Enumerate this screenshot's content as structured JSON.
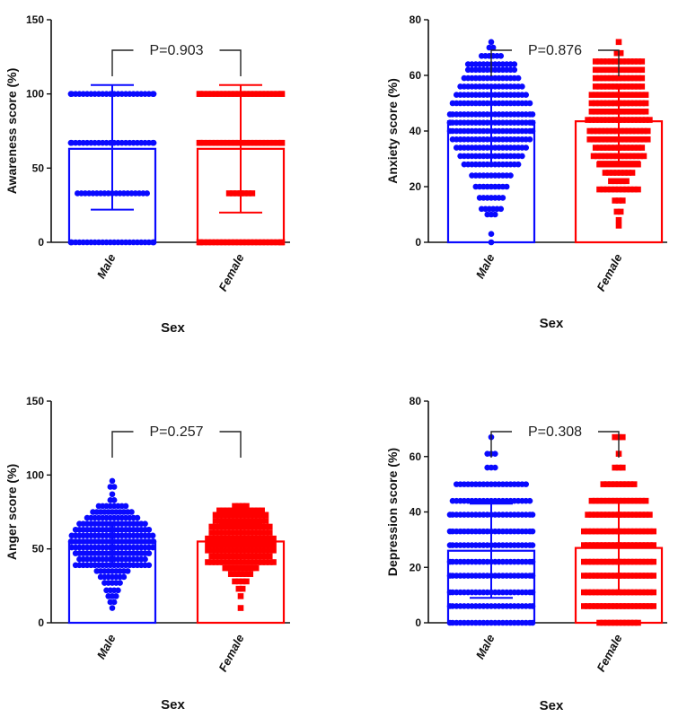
{
  "colors": {
    "male": "#0a0aff",
    "female": "#ff0000",
    "axis": "#111111"
  },
  "chart_data": [
    {
      "type": "bar",
      "ylabel": "Awareness score (%)",
      "xlabel": "Sex",
      "ylim": [
        0,
        150
      ],
      "yticks": [
        "0",
        "50",
        "100",
        "150"
      ],
      "categories": [
        "Male",
        "Female"
      ],
      "pvalue": "P=0.903",
      "series": [
        {
          "name": "Male",
          "mean": 63,
          "err_low": 22,
          "err_high": 106,
          "marker": "circle",
          "points": [
            {
              "y": 0,
              "n": 26
            },
            {
              "y": 33,
              "n": 19
            },
            {
              "y": 67,
              "n": 26
            },
            {
              "y": 100,
              "n": 26
            }
          ]
        },
        {
          "name": "Female",
          "mean": 63,
          "err_low": 20,
          "err_high": 106,
          "marker": "square",
          "points": [
            {
              "y": 0,
              "n": 24
            },
            {
              "y": 33,
              "n": 7
            },
            {
              "y": 67,
              "n": 24
            },
            {
              "y": 100,
              "n": 24
            }
          ]
        }
      ]
    },
    {
      "type": "bar",
      "ylabel": "Anxiety score (%)",
      "xlabel": "Sex",
      "ylim": [
        0,
        80
      ],
      "yticks": [
        "0",
        "20",
        "40",
        "60",
        "80"
      ],
      "categories": [
        "Male",
        "Female"
      ],
      "pvalue": "P=0.876",
      "series": [
        {
          "name": "Male",
          "mean": 43.5,
          "err_low": 28,
          "err_high": 56,
          "marker": "circle",
          "points": [
            {
              "y": 0,
              "n": 1
            },
            {
              "y": 3,
              "n": 1
            },
            {
              "y": 10,
              "n": 3
            },
            {
              "y": 12,
              "n": 6
            },
            {
              "y": 16,
              "n": 7
            },
            {
              "y": 20,
              "n": 9
            },
            {
              "y": 24,
              "n": 11
            },
            {
              "y": 28,
              "n": 15
            },
            {
              "y": 31,
              "n": 17
            },
            {
              "y": 34,
              "n": 19
            },
            {
              "y": 37,
              "n": 21
            },
            {
              "y": 40,
              "n": 23
            },
            {
              "y": 43,
              "n": 25
            },
            {
              "y": 46,
              "n": 23
            },
            {
              "y": 50,
              "n": 21
            },
            {
              "y": 53,
              "n": 19
            },
            {
              "y": 56,
              "n": 17
            },
            {
              "y": 59,
              "n": 15
            },
            {
              "y": 62,
              "n": 13
            },
            {
              "y": 64,
              "n": 13
            },
            {
              "y": 67,
              "n": 6
            },
            {
              "y": 70,
              "n": 2
            },
            {
              "y": 72,
              "n": 1
            }
          ]
        },
        {
          "name": "Female",
          "mean": 43.5,
          "err_low": 29,
          "err_high": 56,
          "marker": "square",
          "points": [
            {
              "y": 6,
              "n": 1
            },
            {
              "y": 8,
              "n": 1
            },
            {
              "y": 11,
              "n": 2
            },
            {
              "y": 15,
              "n": 3
            },
            {
              "y": 19,
              "n": 11
            },
            {
              "y": 22,
              "n": 5
            },
            {
              "y": 25,
              "n": 8
            },
            {
              "y": 28,
              "n": 11
            },
            {
              "y": 31,
              "n": 14
            },
            {
              "y": 34,
              "n": 13
            },
            {
              "y": 37,
              "n": 16
            },
            {
              "y": 40,
              "n": 16
            },
            {
              "y": 44,
              "n": 17
            },
            {
              "y": 47,
              "n": 15
            },
            {
              "y": 50,
              "n": 15
            },
            {
              "y": 53,
              "n": 15
            },
            {
              "y": 56,
              "n": 13
            },
            {
              "y": 59,
              "n": 13
            },
            {
              "y": 62,
              "n": 13
            },
            {
              "y": 65,
              "n": 13
            },
            {
              "y": 68,
              "n": 2
            },
            {
              "y": 72,
              "n": 1
            }
          ]
        }
      ]
    },
    {
      "type": "bar",
      "ylabel": "Anger score (%)",
      "xlabel": "Sex",
      "ylim": [
        0,
        150
      ],
      "yticks": [
        "0",
        "50",
        "100",
        "150"
      ],
      "categories": [
        "Male",
        "Female"
      ],
      "pvalue": "P=0.257",
      "series": [
        {
          "name": "Male",
          "mean": 54,
          "err_low": 40,
          "err_high": 68,
          "marker": "circle",
          "points": [
            {
              "y": 10,
              "n": 1
            },
            {
              "y": 14,
              "n": 2
            },
            {
              "y": 18,
              "n": 3
            },
            {
              "y": 22,
              "n": 4
            },
            {
              "y": 27,
              "n": 5
            },
            {
              "y": 31,
              "n": 7
            },
            {
              "y": 35,
              "n": 9
            },
            {
              "y": 39,
              "n": 20
            },
            {
              "y": 43,
              "n": 18
            },
            {
              "y": 47,
              "n": 20
            },
            {
              "y": 51,
              "n": 22
            },
            {
              "y": 55,
              "n": 24
            },
            {
              "y": 59,
              "n": 22
            },
            {
              "y": 63,
              "n": 20
            },
            {
              "y": 67,
              "n": 18
            },
            {
              "y": 71,
              "n": 14
            },
            {
              "y": 75,
              "n": 11
            },
            {
              "y": 79,
              "n": 8
            },
            {
              "y": 83,
              "n": 2
            },
            {
              "y": 87,
              "n": 1
            },
            {
              "y": 92,
              "n": 2
            },
            {
              "y": 96,
              "n": 1
            }
          ]
        },
        {
          "name": "Female",
          "mean": 55,
          "err_low": 40,
          "err_high": 67,
          "marker": "square",
          "points": [
            {
              "y": 10,
              "n": 1
            },
            {
              "y": 18,
              "n": 1
            },
            {
              "y": 23,
              "n": 2
            },
            {
              "y": 28,
              "n": 4
            },
            {
              "y": 33,
              "n": 6
            },
            {
              "y": 37,
              "n": 9
            },
            {
              "y": 41,
              "n": 18
            },
            {
              "y": 45,
              "n": 16
            },
            {
              "y": 49,
              "n": 18
            },
            {
              "y": 53,
              "n": 18
            },
            {
              "y": 57,
              "n": 18
            },
            {
              "y": 61,
              "n": 16
            },
            {
              "y": 65,
              "n": 16
            },
            {
              "y": 69,
              "n": 14
            },
            {
              "y": 73,
              "n": 14
            },
            {
              "y": 76,
              "n": 12
            },
            {
              "y": 79,
              "n": 4
            }
          ]
        }
      ]
    },
    {
      "type": "bar",
      "ylabel": "Depression score (%)",
      "xlabel": "Sex",
      "ylim": [
        0,
        80
      ],
      "yticks": [
        "0",
        "20",
        "40",
        "60",
        "80"
      ],
      "categories": [
        "Male",
        "Female"
      ],
      "pvalue": "P=0.308",
      "series": [
        {
          "name": "Male",
          "mean": 26,
          "err_low": 9,
          "err_high": 43,
          "marker": "circle",
          "points": [
            {
              "y": 0,
              "n": 23
            },
            {
              "y": 6,
              "n": 23
            },
            {
              "y": 11,
              "n": 23
            },
            {
              "y": 17,
              "n": 23
            },
            {
              "y": 22,
              "n": 23
            },
            {
              "y": 28,
              "n": 23
            },
            {
              "y": 33,
              "n": 23
            },
            {
              "y": 39,
              "n": 23
            },
            {
              "y": 44,
              "n": 21
            },
            {
              "y": 50,
              "n": 19
            },
            {
              "y": 56,
              "n": 3
            },
            {
              "y": 61,
              "n": 3
            },
            {
              "y": 67,
              "n": 1
            }
          ]
        },
        {
          "name": "Female",
          "mean": 27,
          "err_low": 11,
          "err_high": 44,
          "marker": "square",
          "points": [
            {
              "y": 0,
              "n": 11
            },
            {
              "y": 6,
              "n": 19
            },
            {
              "y": 11,
              "n": 19
            },
            {
              "y": 17,
              "n": 19
            },
            {
              "y": 22,
              "n": 19
            },
            {
              "y": 28,
              "n": 19
            },
            {
              "y": 33,
              "n": 19
            },
            {
              "y": 39,
              "n": 17
            },
            {
              "y": 44,
              "n": 15
            },
            {
              "y": 50,
              "n": 9
            },
            {
              "y": 56,
              "n": 3
            },
            {
              "y": 61,
              "n": 1
            },
            {
              "y": 67,
              "n": 3
            }
          ]
        }
      ]
    }
  ]
}
